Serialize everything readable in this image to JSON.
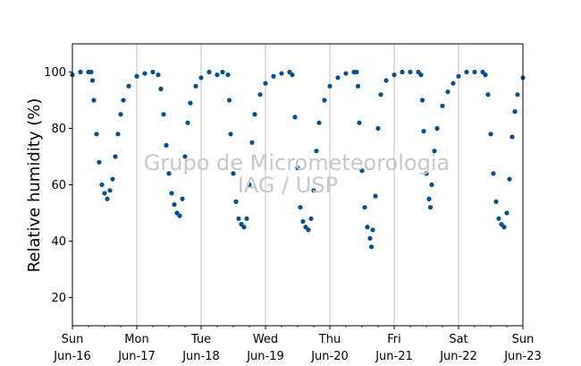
{
  "chart_data": {
    "type": "scatter",
    "title": "",
    "xlabel": "",
    "ylabel": "Relative humidity (%)",
    "ylim": [
      10,
      110
    ],
    "xlim": [
      "2013-06-16",
      "2013-06-23"
    ],
    "yticks": [
      20,
      40,
      60,
      80,
      100
    ],
    "x_ticks": [
      {
        "date": "2013-06-16",
        "day": "Sun",
        "date_label": "Jun-16"
      },
      {
        "date": "2013-06-17",
        "day": "Mon",
        "date_label": "Jun-17"
      },
      {
        "date": "2013-06-18",
        "day": "Tue",
        "date_label": "Jun-18"
      },
      {
        "date": "2013-06-19",
        "day": "Wed",
        "date_label": "Jun-19"
      },
      {
        "date": "2013-06-20",
        "day": "Thu",
        "date_label": "Jun-20"
      },
      {
        "date": "2013-06-21",
        "day": "Fri",
        "date_label": "Jun-21"
      },
      {
        "date": "2013-06-22",
        "day": "Sat",
        "date_label": "Jun-22"
      },
      {
        "date": "2013-06-23",
        "day": "Sun",
        "date_label": "Jun-23"
      }
    ],
    "grid": "vertical at day boundaries",
    "marker_color": "#0b4f8a",
    "watermark": [
      "Grupo de Micrometeorologia",
      "IAG / USP"
    ],
    "series": [
      {
        "points": [
          [
            "2013-06-16T00:00",
            99.0
          ],
          [
            "2013-06-16T03:00",
            100.0
          ],
          [
            "2013-06-16T06:00",
            100.0
          ],
          [
            "2013-06-16T07:00",
            100.0
          ],
          [
            "2013-06-16T07:30",
            97.0
          ],
          [
            "2013-06-16T08:00",
            90.0
          ],
          [
            "2013-06-16T09:00",
            78.0
          ],
          [
            "2013-06-16T10:00",
            68.0
          ],
          [
            "2013-06-16T11:00",
            60.0
          ],
          [
            "2013-06-16T12:00",
            57.0
          ],
          [
            "2013-06-16T13:00",
            55.0
          ],
          [
            "2013-06-16T14:00",
            58.0
          ],
          [
            "2013-06-16T15:00",
            62.0
          ],
          [
            "2013-06-16T16:00",
            70.0
          ],
          [
            "2013-06-16T17:00",
            78.0
          ],
          [
            "2013-06-16T18:00",
            85.0
          ],
          [
            "2013-06-16T19:00",
            90.0
          ],
          [
            "2013-06-16T21:00",
            95.0
          ],
          [
            "2013-06-17T00:00",
            98.5
          ],
          [
            "2013-06-17T03:00",
            99.5
          ],
          [
            "2013-06-17T06:00",
            100.0
          ],
          [
            "2013-06-17T08:00",
            99.0
          ],
          [
            "2013-06-17T09:00",
            94.0
          ],
          [
            "2013-06-17T10:00",
            85.0
          ],
          [
            "2013-06-17T11:00",
            74.0
          ],
          [
            "2013-06-17T12:00",
            64.0
          ],
          [
            "2013-06-17T13:00",
            57.0
          ],
          [
            "2013-06-17T14:00",
            53.0
          ],
          [
            "2013-06-17T15:00",
            50.0
          ],
          [
            "2013-06-17T16:00",
            49.0
          ],
          [
            "2013-06-17T17:00",
            55.0
          ],
          [
            "2013-06-17T18:00",
            70.0
          ],
          [
            "2013-06-17T19:00",
            82.0
          ],
          [
            "2013-06-17T20:00",
            89.0
          ],
          [
            "2013-06-17T22:00",
            95.0
          ],
          [
            "2013-06-18T00:00",
            98.0
          ],
          [
            "2013-06-18T03:00",
            100.0
          ],
          [
            "2013-06-18T06:00",
            99.0
          ],
          [
            "2013-06-18T08:00",
            100.0
          ],
          [
            "2013-06-18T10:00",
            99.0
          ],
          [
            "2013-06-18T10:30",
            90.0
          ],
          [
            "2013-06-18T11:00",
            78.0
          ],
          [
            "2013-06-18T12:00",
            64.0
          ],
          [
            "2013-06-18T13:00",
            54.0
          ],
          [
            "2013-06-18T14:00",
            48.0
          ],
          [
            "2013-06-18T15:00",
            46.0
          ],
          [
            "2013-06-18T16:00",
            45.0
          ],
          [
            "2013-06-18T17:00",
            48.0
          ],
          [
            "2013-06-18T18:00",
            60.0
          ],
          [
            "2013-06-18T19:00",
            75.0
          ],
          [
            "2013-06-18T20:00",
            85.0
          ],
          [
            "2013-06-18T22:00",
            92.0
          ],
          [
            "2013-06-19T00:00",
            96.0
          ],
          [
            "2013-06-19T03:00",
            98.5
          ],
          [
            "2013-06-19T06:00",
            99.5
          ],
          [
            "2013-06-19T09:00",
            100.0
          ],
          [
            "2013-06-19T10:00",
            99.0
          ],
          [
            "2013-06-19T11:00",
            84.0
          ],
          [
            "2013-06-19T12:00",
            66.0
          ],
          [
            "2013-06-19T13:00",
            52.0
          ],
          [
            "2013-06-19T14:00",
            47.0
          ],
          [
            "2013-06-19T15:00",
            45.0
          ],
          [
            "2013-06-19T16:00",
            44.0
          ],
          [
            "2013-06-19T17:00",
            48.0
          ],
          [
            "2013-06-19T18:00",
            58.0
          ],
          [
            "2013-06-19T19:00",
            72.0
          ],
          [
            "2013-06-19T20:00",
            82.0
          ],
          [
            "2013-06-19T22:00",
            90.0
          ],
          [
            "2013-06-20T00:00",
            95.0
          ],
          [
            "2013-06-20T03:00",
            98.0
          ],
          [
            "2013-06-20T06:00",
            99.5
          ],
          [
            "2013-06-20T09:00",
            100.0
          ],
          [
            "2013-06-20T10:00",
            100.0
          ],
          [
            "2013-06-20T10:30",
            95.0
          ],
          [
            "2013-06-20T11:00",
            82.0
          ],
          [
            "2013-06-20T12:00",
            65.0
          ],
          [
            "2013-06-20T13:00",
            52.0
          ],
          [
            "2013-06-20T14:00",
            45.0
          ],
          [
            "2013-06-20T15:00",
            41.0
          ],
          [
            "2013-06-20T15:30",
            38.0
          ],
          [
            "2013-06-20T16:00",
            44.0
          ],
          [
            "2013-06-20T17:00",
            56.0
          ],
          [
            "2013-06-20T18:00",
            80.0
          ],
          [
            "2013-06-20T19:00",
            92.0
          ],
          [
            "2013-06-20T21:00",
            97.0
          ],
          [
            "2013-06-21T00:00",
            99.0
          ],
          [
            "2013-06-21T03:00",
            100.0
          ],
          [
            "2013-06-21T06:00",
            100.0
          ],
          [
            "2013-06-21T09:00",
            100.0
          ],
          [
            "2013-06-21T10:00",
            99.0
          ],
          [
            "2013-06-21T10:30",
            90.0
          ],
          [
            "2013-06-21T11:00",
            79.0
          ],
          [
            "2013-06-21T12:00",
            64.0
          ],
          [
            "2013-06-21T13:00",
            55.0
          ],
          [
            "2013-06-21T13:30",
            52.0
          ],
          [
            "2013-06-21T14:00",
            60.0
          ],
          [
            "2013-06-21T15:00",
            72.0
          ],
          [
            "2013-06-21T16:00",
            80.0
          ],
          [
            "2013-06-21T18:00",
            88.0
          ],
          [
            "2013-06-21T20:00",
            93.0
          ],
          [
            "2013-06-21T22:00",
            96.0
          ],
          [
            "2013-06-22T00:00",
            98.5
          ],
          [
            "2013-06-22T03:00",
            100.0
          ],
          [
            "2013-06-22T06:00",
            100.0
          ],
          [
            "2013-06-22T09:00",
            100.0
          ],
          [
            "2013-06-22T10:00",
            99.0
          ],
          [
            "2013-06-22T11:00",
            92.0
          ],
          [
            "2013-06-22T12:00",
            78.0
          ],
          [
            "2013-06-22T13:00",
            64.0
          ],
          [
            "2013-06-22T14:00",
            54.0
          ],
          [
            "2013-06-22T15:00",
            48.0
          ],
          [
            "2013-06-22T16:00",
            46.0
          ],
          [
            "2013-06-22T17:00",
            45.0
          ],
          [
            "2013-06-22T18:00",
            50.0
          ],
          [
            "2013-06-22T19:00",
            62.0
          ],
          [
            "2013-06-22T20:00",
            77.0
          ],
          [
            "2013-06-22T21:00",
            86.0
          ],
          [
            "2013-06-22T22:00",
            92.0
          ],
          [
            "2013-06-23T00:00",
            98.0
          ]
        ]
      }
    ]
  }
}
